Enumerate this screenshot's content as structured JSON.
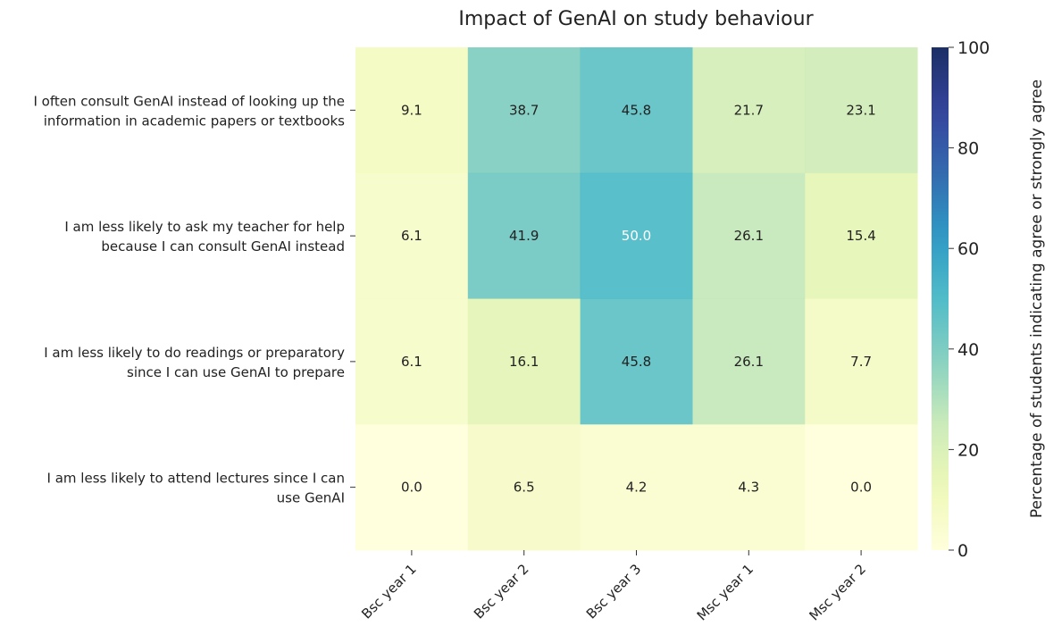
{
  "chart_data": {
    "type": "heatmap",
    "title": "Impact of GenAI on study behaviour",
    "columns": [
      "Bsc year 1",
      "Bsc year 2",
      "Bsc year 3",
      "Msc year 1",
      "Msc year 2"
    ],
    "rows": [
      [
        "I often consult GenAI instead of looking up the",
        "information in academic papers or textbooks"
      ],
      [
        "I am less likely to ask my teacher for help",
        "because I can consult GenAI instead"
      ],
      [
        "I am less likely to do readings or preparatory",
        "since I can use GenAI to prepare"
      ],
      [
        "I am less likely to attend lectures since I can",
        "use GenAI"
      ]
    ],
    "values": [
      [
        9.1,
        38.7,
        45.8,
        21.7,
        23.1
      ],
      [
        6.1,
        41.9,
        50.0,
        26.1,
        15.4
      ],
      [
        6.1,
        16.1,
        45.8,
        26.1,
        7.7
      ],
      [
        0.0,
        6.5,
        4.2,
        4.3,
        0.0
      ]
    ],
    "colormap": "YlGnBu",
    "vmin": 0,
    "vmax": 100,
    "colorbar": {
      "label": "Percentage of students indicating agree or strongly agree",
      "ticks": [
        "0",
        "20",
        "40",
        "60",
        "80",
        "100"
      ]
    }
  }
}
